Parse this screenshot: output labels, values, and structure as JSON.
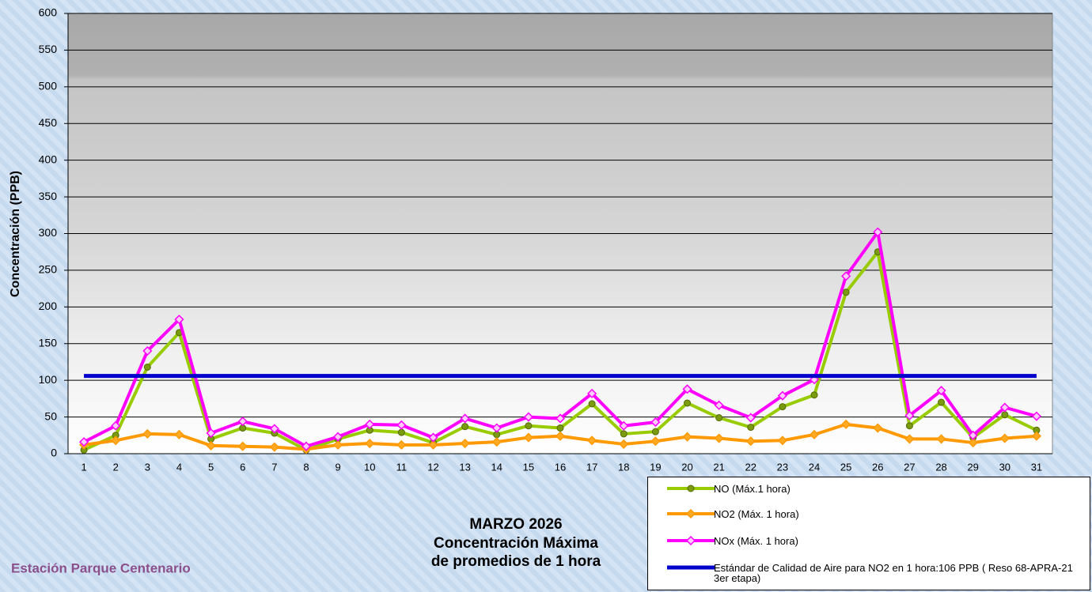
{
  "chart_data": {
    "type": "line",
    "title": "MARZO 2026",
    "subtitle": [
      "Concentración Máxima",
      "de promedios de 1 hora"
    ],
    "annotation": "Estación Parque Centenario",
    "y_label": "Concentración  (PPB)",
    "categories": [
      "1",
      "2",
      "3",
      "4",
      "5",
      "6",
      "7",
      "8",
      "9",
      "10",
      "11",
      "12",
      "13",
      "14",
      "15",
      "16",
      "17",
      "18",
      "19",
      "20",
      "21",
      "22",
      "23",
      "24",
      "25",
      "26",
      "27",
      "28",
      "29",
      "30",
      "31"
    ],
    "ylim": [
      0,
      600
    ],
    "yticks": [
      0,
      50,
      100,
      150,
      200,
      250,
      300,
      350,
      400,
      450,
      500,
      550,
      600
    ],
    "grid": true,
    "legend": "bottom-right",
    "series": [
      {
        "name": "NO (Máx.1 hora)",
        "color": "#99cc00",
        "marker": "circle",
        "marker_color": "#7a9a10",
        "values": [
          5,
          25,
          118,
          165,
          20,
          35,
          28,
          5,
          20,
          32,
          29,
          15,
          37,
          26,
          38,
          35,
          68,
          27,
          30,
          69,
          49,
          36,
          64,
          80,
          220,
          275,
          38,
          70,
          22,
          53,
          32
        ]
      },
      {
        "name": "NO2 (Máx. 1 hora)",
        "color": "#ff9900",
        "marker": "diamond",
        "marker_color": "#ffaa22",
        "values": [
          12,
          18,
          27,
          26,
          11,
          10,
          9,
          6,
          12,
          14,
          12,
          12,
          14,
          16,
          22,
          24,
          18,
          13,
          17,
          23,
          21,
          17,
          18,
          26,
          40,
          35,
          20,
          20,
          15,
          21,
          24
        ]
      },
      {
        "name": "NOx (Máx. 1 hora)",
        "color": "#ff00ff",
        "marker": "diamond",
        "marker_color": "#ffccff",
        "values": [
          16,
          38,
          140,
          183,
          28,
          44,
          34,
          10,
          23,
          40,
          39,
          22,
          48,
          35,
          50,
          48,
          82,
          38,
          43,
          88,
          66,
          49,
          79,
          101,
          242,
          302,
          52,
          86,
          25,
          63,
          51
        ]
      },
      {
        "name": "Estándar de Calidad de Aire para NO2 en 1 hora:106 PPB ( Reso 68-APRA-21 3er  etapa)",
        "color": "#0000cc",
        "marker": null,
        "values": [
          106,
          106,
          106,
          106,
          106,
          106,
          106,
          106,
          106,
          106,
          106,
          106,
          106,
          106,
          106,
          106,
          106,
          106,
          106,
          106,
          106,
          106,
          106,
          106,
          106,
          106,
          106,
          106,
          106,
          106,
          106
        ]
      }
    ]
  }
}
